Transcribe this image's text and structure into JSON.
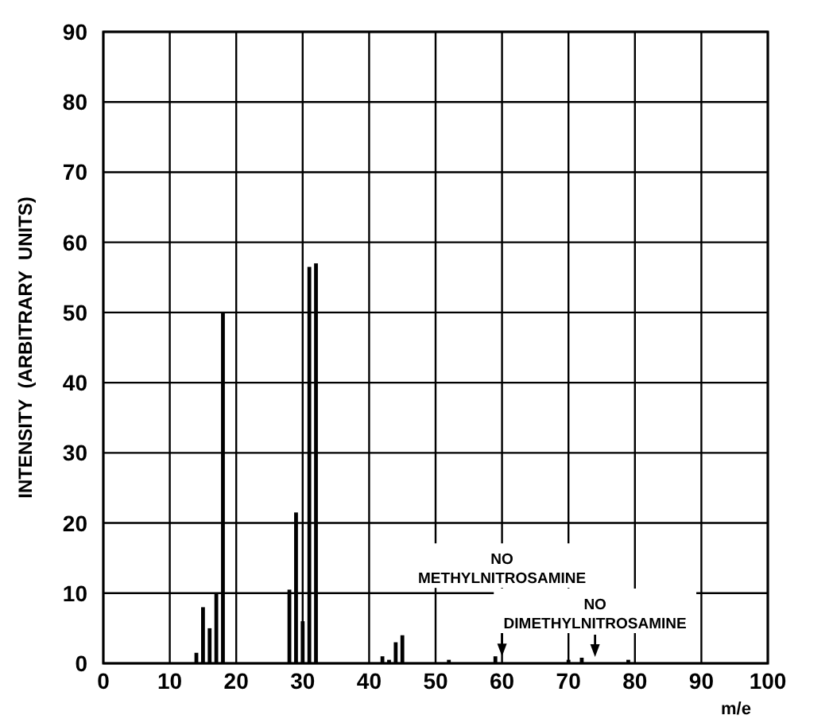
{
  "chart_data": {
    "type": "bar",
    "xlabel": "m/e",
    "ylabel": "INTENSITY  (ARBITRARY  UNITS)",
    "x": [
      14,
      15,
      16,
      17,
      18,
      28,
      29,
      30,
      31,
      32,
      42,
      43,
      44,
      45,
      52,
      59,
      70,
      72,
      79
    ],
    "values": [
      1.5,
      8,
      5,
      10,
      50,
      10.5,
      21.5,
      6,
      56.5,
      57,
      1,
      0.5,
      3,
      4,
      0.5,
      1,
      0.5,
      0.8,
      0.5
    ],
    "color": "#000000",
    "xlim": [
      0,
      100
    ],
    "xticks": [
      0,
      10,
      20,
      30,
      40,
      50,
      60,
      70,
      80,
      90,
      100
    ],
    "ylim": [
      0,
      90
    ],
    "yticks": [
      0,
      10,
      20,
      30,
      40,
      50,
      60,
      70,
      80,
      90
    ],
    "grid": true,
    "annotations": [
      {
        "text": "NO\nMETHYLNITROSAMINE",
        "x": 60,
        "y": 1
      },
      "NO\nDIMETHYLNITROSAMINE"
    ]
  }
}
